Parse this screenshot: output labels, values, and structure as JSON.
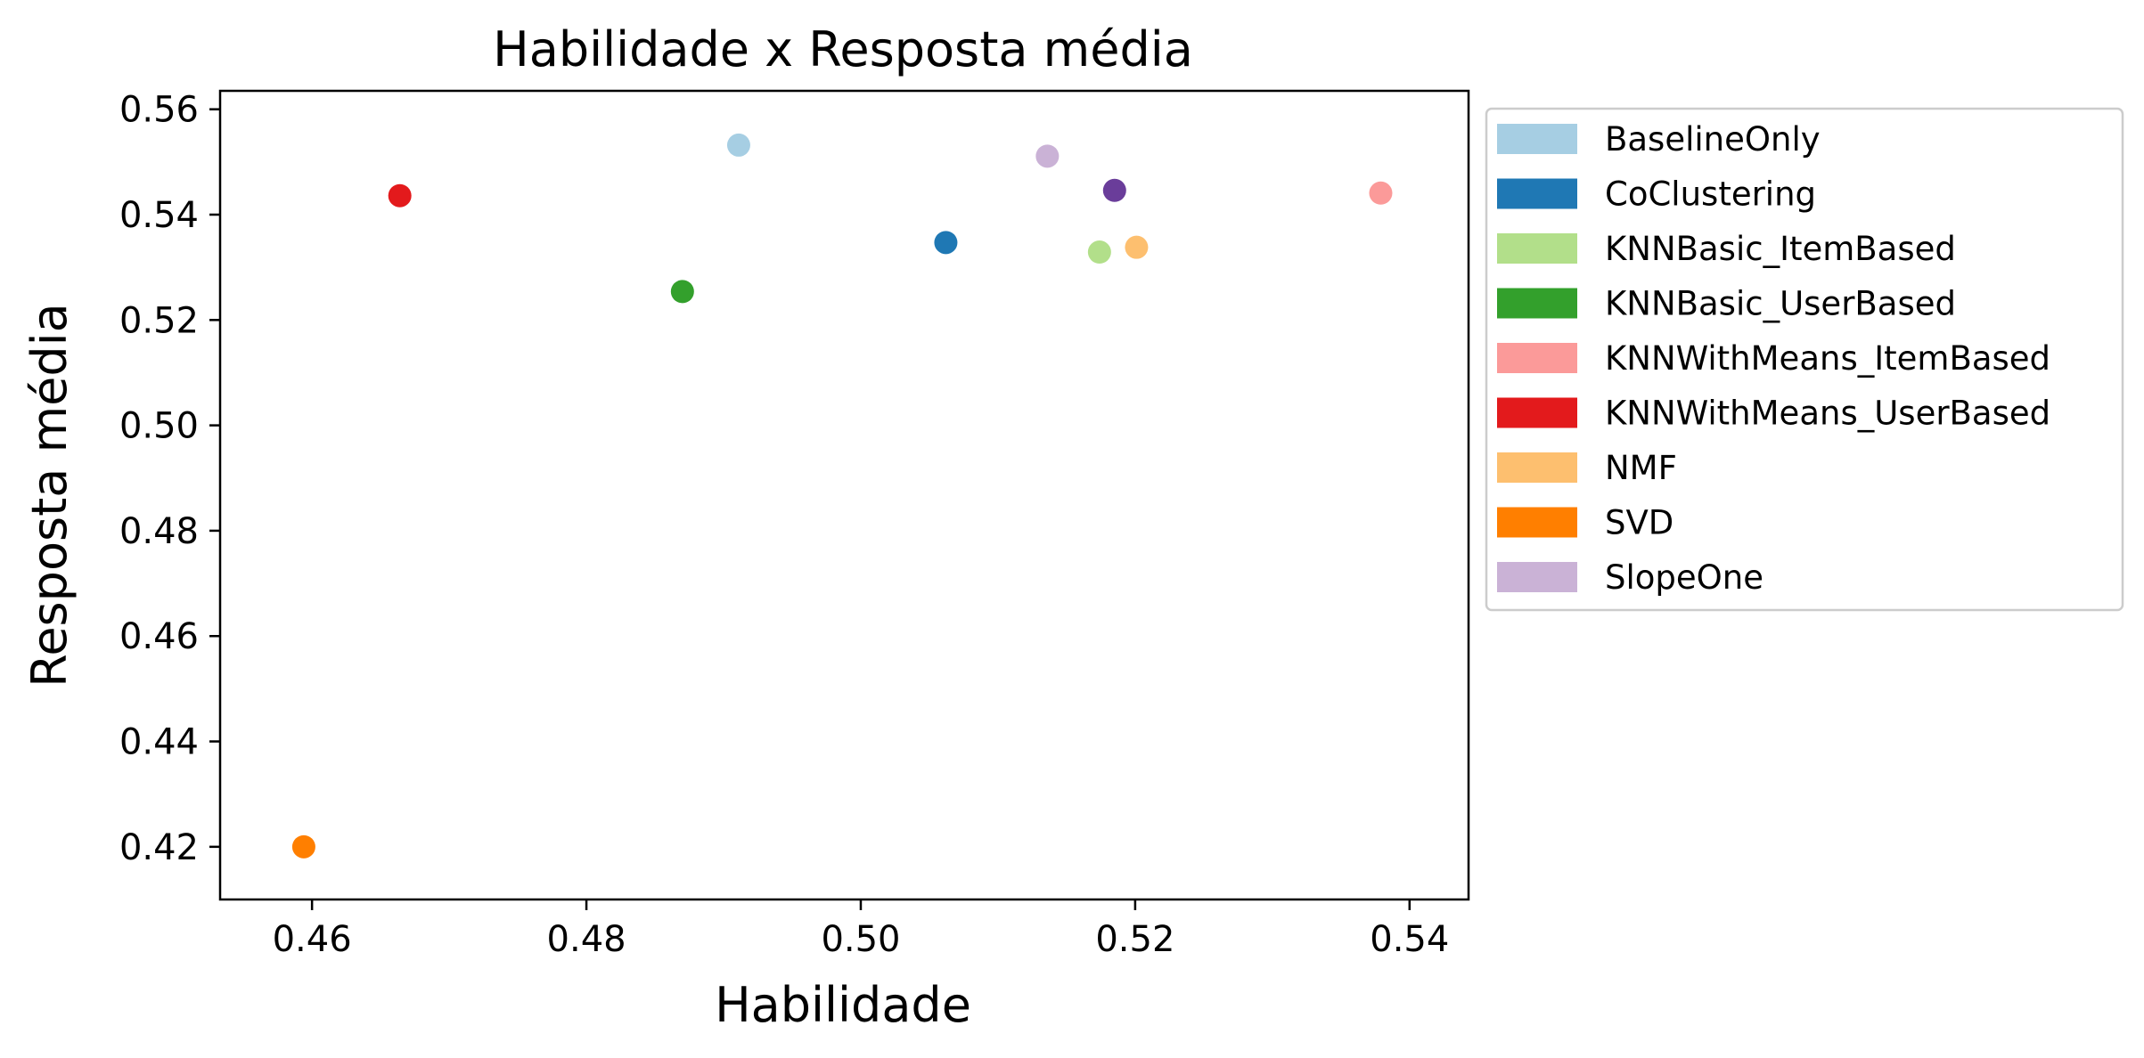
{
  "chart_data": {
    "type": "scatter",
    "title": "Habilidade x Resposta média",
    "xlabel": "Habilidade",
    "ylabel": "Resposta média",
    "xlim": [
      0.4533,
      0.5443
    ],
    "ylim": [
      0.41,
      0.5635
    ],
    "xticks": [
      "0.46",
      "0.48",
      "0.50",
      "0.52",
      "0.54"
    ],
    "yticks": [
      "0.42",
      "0.44",
      "0.46",
      "0.48",
      "0.50",
      "0.52",
      "0.54",
      "0.56"
    ],
    "grid": false,
    "legend_position": "outside-right",
    "series": [
      {
        "name": "BaselineOnly",
        "color": "#a6cee3",
        "x": 0.4911,
        "y": 0.5532
      },
      {
        "name": "CoClustering",
        "color": "#1f78b4",
        "x": 0.5062,
        "y": 0.5347
      },
      {
        "name": "KNNBasic_ItemBased",
        "color": "#b2df8a",
        "x": 0.5174,
        "y": 0.5329
      },
      {
        "name": "KNNBasic_UserBased",
        "color": "#33a02c",
        "x": 0.487,
        "y": 0.5254
      },
      {
        "name": "KNNWithMeans_ItemBased",
        "color": "#fb9a99",
        "x": 0.5379,
        "y": 0.5441
      },
      {
        "name": "KNNWithMeans_UserBased",
        "color": "#e31a1c",
        "x": 0.4664,
        "y": 0.5436
      },
      {
        "name": "NMF",
        "color": "#fdbf6f",
        "x": 0.5201,
        "y": 0.5338
      },
      {
        "name": "SVD",
        "color": "#ff7f00",
        "x": 0.4594,
        "y": 0.42
      },
      {
        "name": "SlopeOne",
        "color": "#cab2d6",
        "x": 0.5136,
        "y": 0.5511
      }
    ],
    "extra_points": [
      {
        "color": "#6a3d9a",
        "x": 0.5185,
        "y": 0.5446
      }
    ]
  }
}
